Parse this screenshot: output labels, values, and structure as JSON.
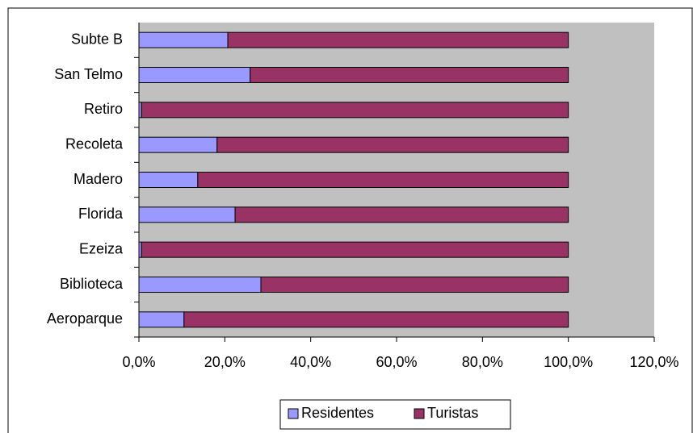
{
  "chart_data": {
    "type": "stacked_barh",
    "categories": [
      "Aeroparque",
      "Biblioteca",
      "Ezeiza",
      "Florida",
      "Madero",
      "Recoleta",
      "Retiro",
      "San Telmo",
      "Subte B"
    ],
    "series": [
      {
        "name": "Residentes",
        "color": "#9999ff",
        "values": [
          10.5,
          28.4,
          0.6,
          22.4,
          13.7,
          18.2,
          0.6,
          25.9,
          20.7
        ]
      },
      {
        "name": "Turistas",
        "color": "#993366",
        "values": [
          89.5,
          71.6,
          99.4,
          77.6,
          86.3,
          81.8,
          99.4,
          74.1,
          79.3
        ]
      }
    ],
    "xlim": [
      0,
      120
    ],
    "xticks": [
      {
        "value": 0,
        "label": "0,0%"
      },
      {
        "value": 20,
        "label": "20,0%"
      },
      {
        "value": 40,
        "label": "40,0%"
      },
      {
        "value": 60,
        "label": "60,0%"
      },
      {
        "value": 80,
        "label": "80,0%"
      },
      {
        "value": 100,
        "label": "100,0%"
      },
      {
        "value": 120,
        "label": "120,0%"
      }
    ],
    "legend": "bottom"
  }
}
